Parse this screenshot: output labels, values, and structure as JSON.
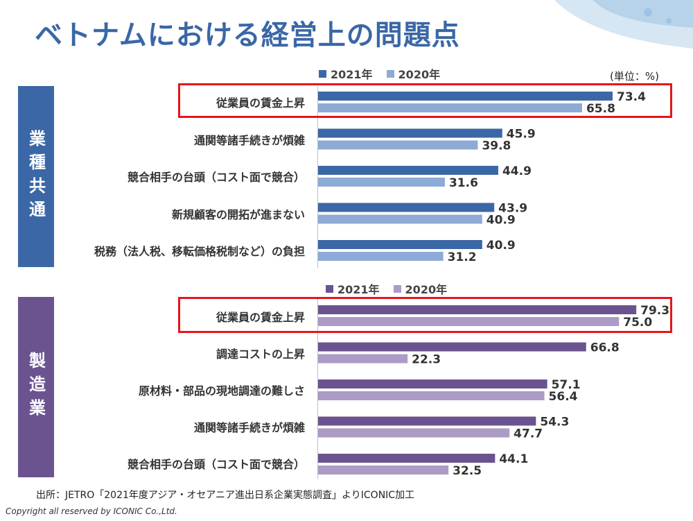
{
  "title": "ベトナムにおける経営上の問題点",
  "unit": "(単位：%)",
  "footer": "出所：JETRO「2021年度アジア・オセアニア進出日系企業実態調査」よりICONIC加工",
  "copyright": "Copyright all reserved by ICONIC Co.,Ltd.",
  "colors": {
    "blue_2021": "#3b67a6",
    "blue_2020": "#8eaad6",
    "purple_2021": "#6b5390",
    "purple_2020": "#ab9bc5",
    "highlight": "#e8141b"
  },
  "chart_data": [
    {
      "type": "bar",
      "group_label": "業種共通",
      "legend": [
        "2021年",
        "2020年"
      ],
      "categories": [
        "従業員の賃金上昇",
        "通関等諸手続きが煩雑",
        "競合相手の台頭（コスト面で競合）",
        "新規顧客の開拓が進まない",
        "税務（法人税、移転価格税制など）の負担"
      ],
      "series": [
        {
          "name": "2021年",
          "values": [
            73.4,
            45.9,
            44.9,
            43.9,
            40.9
          ]
        },
        {
          "name": "2020年",
          "values": [
            65.8,
            39.8,
            31.6,
            40.9,
            31.2
          ]
        }
      ],
      "highlighted_category": "従業員の賃金上昇"
    },
    {
      "type": "bar",
      "group_label": "製造業",
      "legend": [
        "2021年",
        "2020年"
      ],
      "categories": [
        "従業員の賃金上昇",
        "調達コストの上昇",
        "原材料・部品の現地調達の難しさ",
        "通関等諸手続きが煩雑",
        "競合相手の台頭（コスト面で競合）"
      ],
      "series": [
        {
          "name": "2021年",
          "values": [
            79.3,
            66.8,
            57.1,
            54.3,
            44.1
          ]
        },
        {
          "name": "2020年",
          "values": [
            75.0,
            22.3,
            56.4,
            47.7,
            32.5
          ]
        }
      ],
      "highlighted_category": "従業員の賃金上昇"
    }
  ]
}
